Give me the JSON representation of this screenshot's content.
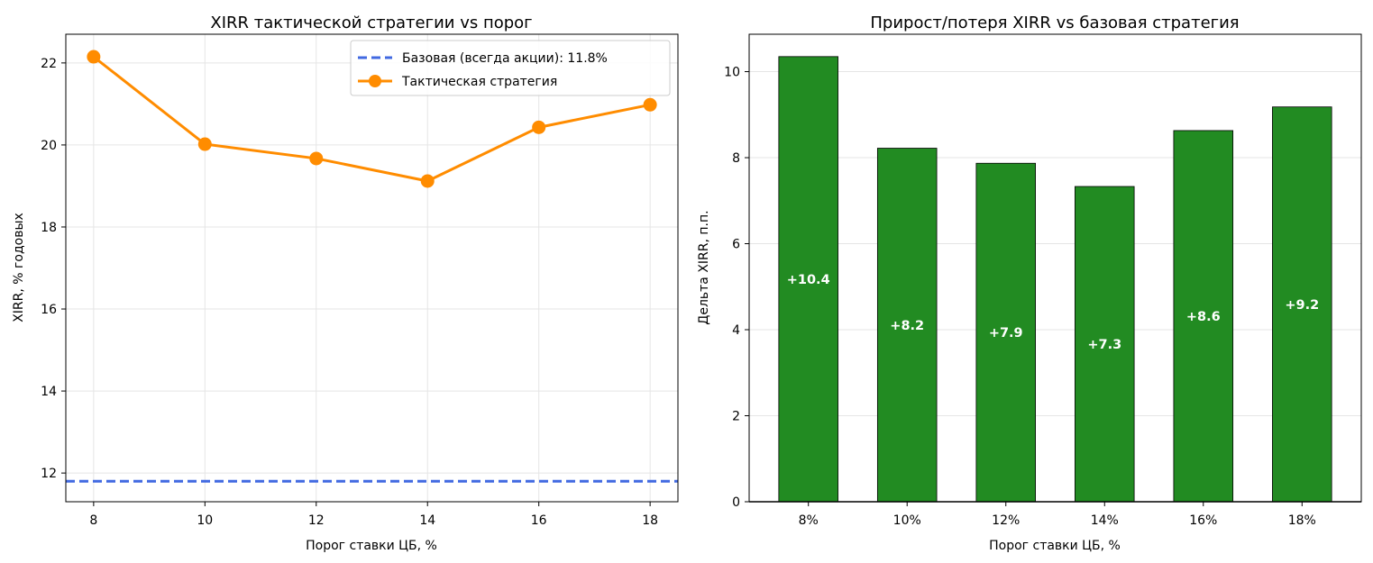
{
  "chart_data": [
    {
      "type": "line",
      "title": "XIRR тактической стратегии vs порог",
      "xlabel": "Порог ставки ЦБ, %",
      "ylabel": "XIRR, % годовых",
      "xlim": [
        7.5,
        18.5
      ],
      "ylim": [
        11.3,
        22.7
      ],
      "xticks": [
        8,
        10,
        12,
        14,
        16,
        18
      ],
      "yticks": [
        12,
        14,
        16,
        18,
        20,
        22
      ],
      "grid": true,
      "legend_position": "top-right",
      "series": [
        {
          "name": "Тактическая стратегия",
          "color": "#ff8c00",
          "marker": "circle",
          "x": [
            8,
            10,
            12,
            14,
            16,
            18
          ],
          "y": [
            22.15,
            20.02,
            19.67,
            19.12,
            20.43,
            20.98
          ]
        }
      ],
      "reference_lines": [
        {
          "name": "Базовая (всегда акции): 11.8%",
          "y": 11.8,
          "style": "dashed",
          "color": "#4169e1"
        }
      ]
    },
    {
      "type": "bar",
      "title": "Прирост/потеря XIRR vs базовая стратегия",
      "xlabel": "Порог ставки ЦБ, %",
      "ylabel": "Дельта XIRR, п.п.",
      "categories": [
        "8%",
        "10%",
        "12%",
        "14%",
        "16%",
        "18%"
      ],
      "values": [
        10.35,
        8.22,
        7.87,
        7.33,
        8.63,
        9.18
      ],
      "data_labels": [
        "+10.4",
        "+8.2",
        "+7.9",
        "+7.3",
        "+8.6",
        "+9.2"
      ],
      "ylim": [
        0,
        10.87
      ],
      "yticks": [
        0,
        2,
        4,
        6,
        8,
        10
      ],
      "grid": true,
      "bar_color": "#228b22"
    }
  ]
}
